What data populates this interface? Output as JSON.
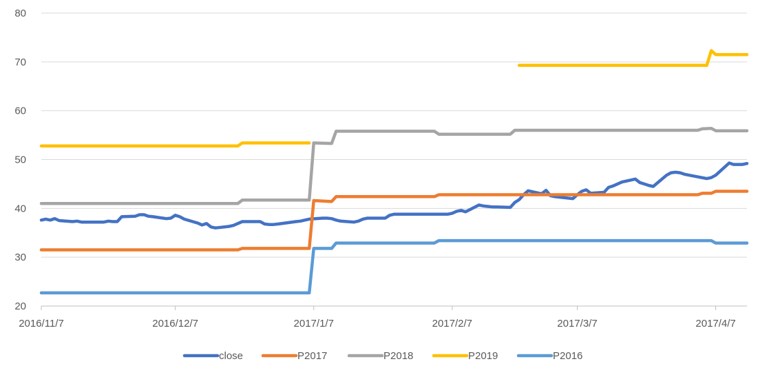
{
  "chart_data": {
    "type": "line",
    "x_ticks": [
      "2016/11/7",
      "2016/12/7",
      "2017/1/7",
      "2017/2/7",
      "2017/3/7",
      "2017/4/7"
    ],
    "x_range": [
      "2016/11/7",
      "2017/4/14"
    ],
    "ylim": [
      20,
      80
    ],
    "y_ticks": [
      "20",
      "30",
      "40",
      "50",
      "60",
      "70",
      "80"
    ],
    "grid": "horizontal",
    "legend_position": "bottom",
    "series": [
      {
        "name": "close",
        "color": "#4472C4",
        "points": [
          [
            "2016/11/7",
            37.6
          ],
          [
            "2016/11/8",
            37.8
          ],
          [
            "2016/11/9",
            37.6
          ],
          [
            "2016/11/10",
            37.9
          ],
          [
            "2016/11/11",
            37.5
          ],
          [
            "2016/11/14",
            37.3
          ],
          [
            "2016/11/15",
            37.4
          ],
          [
            "2016/11/16",
            37.2
          ],
          [
            "2016/11/17",
            37.2
          ],
          [
            "2016/11/18",
            37.2
          ],
          [
            "2016/11/21",
            37.2
          ],
          [
            "2016/11/22",
            37.4
          ],
          [
            "2016/11/23",
            37.3
          ],
          [
            "2016/11/24",
            37.3
          ],
          [
            "2016/11/25",
            38.3
          ],
          [
            "2016/11/28",
            38.4
          ],
          [
            "2016/11/29",
            38.7
          ],
          [
            "2016/11/30",
            38.7
          ],
          [
            "2016/12/1",
            38.4
          ],
          [
            "2016/12/2",
            38.3
          ],
          [
            "2016/12/5",
            37.9
          ],
          [
            "2016/12/6",
            38.0
          ],
          [
            "2016/12/7",
            38.6
          ],
          [
            "2016/12/8",
            38.3
          ],
          [
            "2016/12/9",
            37.8
          ],
          [
            "2016/12/12",
            37.0
          ],
          [
            "2016/12/13",
            36.6
          ],
          [
            "2016/12/14",
            36.9
          ],
          [
            "2016/12/15",
            36.2
          ],
          [
            "2016/12/16",
            36.0
          ],
          [
            "2016/12/19",
            36.3
          ],
          [
            "2016/12/20",
            36.5
          ],
          [
            "2016/12/21",
            36.9
          ],
          [
            "2016/12/22",
            37.3
          ],
          [
            "2016/12/23",
            37.3
          ],
          [
            "2016/12/26",
            37.3
          ],
          [
            "2016/12/27",
            36.8
          ],
          [
            "2016/12/28",
            36.7
          ],
          [
            "2016/12/29",
            36.7
          ],
          [
            "2016/12/30",
            36.8
          ],
          [
            "2017/1/3",
            37.3
          ],
          [
            "2017/1/4",
            37.4
          ],
          [
            "2017/1/5",
            37.6
          ],
          [
            "2017/1/6",
            37.8
          ],
          [
            "2017/1/9",
            38.0
          ],
          [
            "2017/1/10",
            38.0
          ],
          [
            "2017/1/11",
            37.9
          ],
          [
            "2017/1/12",
            37.6
          ],
          [
            "2017/1/13",
            37.4
          ],
          [
            "2017/1/16",
            37.2
          ],
          [
            "2017/1/17",
            37.4
          ],
          [
            "2017/1/18",
            37.8
          ],
          [
            "2017/1/19",
            38.0
          ],
          [
            "2017/1/20",
            38.0
          ],
          [
            "2017/1/23",
            38.0
          ],
          [
            "2017/1/24",
            38.6
          ],
          [
            "2017/1/25",
            38.8
          ],
          [
            "2017/1/26",
            38.8
          ],
          [
            "2017/2/3",
            38.8
          ],
          [
            "2017/2/6",
            38.8
          ],
          [
            "2017/2/7",
            39.0
          ],
          [
            "2017/2/8",
            39.4
          ],
          [
            "2017/2/9",
            39.6
          ],
          [
            "2017/2/10",
            39.3
          ],
          [
            "2017/2/13",
            40.7
          ],
          [
            "2017/2/14",
            40.5
          ],
          [
            "2017/2/15",
            40.4
          ],
          [
            "2017/2/16",
            40.3
          ],
          [
            "2017/2/17",
            40.3
          ],
          [
            "2017/2/20",
            40.2
          ],
          [
            "2017/2/21",
            41.2
          ],
          [
            "2017/2/22",
            41.8
          ],
          [
            "2017/2/23",
            42.8
          ],
          [
            "2017/2/24",
            43.6
          ],
          [
            "2017/2/27",
            43.0
          ],
          [
            "2017/2/28",
            43.7
          ],
          [
            "2017/3/1",
            42.6
          ],
          [
            "2017/3/2",
            42.4
          ],
          [
            "2017/3/3",
            42.3
          ],
          [
            "2017/3/6",
            42.0
          ],
          [
            "2017/3/7",
            42.8
          ],
          [
            "2017/3/8",
            43.5
          ],
          [
            "2017/3/9",
            43.8
          ],
          [
            "2017/3/10",
            43.1
          ],
          [
            "2017/3/13",
            43.3
          ],
          [
            "2017/3/14",
            44.3
          ],
          [
            "2017/3/15",
            44.6
          ],
          [
            "2017/3/16",
            45.0
          ],
          [
            "2017/3/17",
            45.4
          ],
          [
            "2017/3/20",
            46.0
          ],
          [
            "2017/3/21",
            45.3
          ],
          [
            "2017/3/22",
            45.0
          ],
          [
            "2017/3/23",
            44.7
          ],
          [
            "2017/3/24",
            44.5
          ],
          [
            "2017/3/27",
            46.8
          ],
          [
            "2017/3/28",
            47.3
          ],
          [
            "2017/3/29",
            47.4
          ],
          [
            "2017/3/30",
            47.3
          ],
          [
            "2017/3/31",
            47.0
          ],
          [
            "2017/4/5",
            46.1
          ],
          [
            "2017/4/6",
            46.3
          ],
          [
            "2017/4/7",
            46.8
          ],
          [
            "2017/4/10",
            49.3
          ],
          [
            "2017/4/11",
            49.0
          ],
          [
            "2017/4/12",
            49.0
          ],
          [
            "2017/4/13",
            49.0
          ],
          [
            "2017/4/14",
            49.2
          ]
        ]
      },
      {
        "name": "P2017",
        "color": "#ED7D31",
        "points": [
          [
            "2016/11/7",
            31.5
          ],
          [
            "2016/12/21",
            31.5
          ],
          [
            "2016/12/22",
            31.8
          ],
          [
            "2017/1/6",
            31.8
          ],
          [
            "2017/1/7",
            41.6
          ],
          [
            "2017/1/11",
            41.4
          ],
          [
            "2017/1/12",
            42.4
          ],
          [
            "2017/2/3",
            42.4
          ],
          [
            "2017/2/4",
            42.8
          ],
          [
            "2017/4/3",
            42.8
          ],
          [
            "2017/4/4",
            43.1
          ],
          [
            "2017/4/6",
            43.1
          ],
          [
            "2017/4/7",
            43.5
          ],
          [
            "2017/4/14",
            43.5
          ]
        ]
      },
      {
        "name": "P2018",
        "color": "#A5A5A5",
        "points": [
          [
            "2016/11/7",
            41.0
          ],
          [
            "2016/12/21",
            41.0
          ],
          [
            "2016/12/22",
            41.7
          ],
          [
            "2017/1/6",
            41.7
          ],
          [
            "2017/1/7",
            53.4
          ],
          [
            "2017/1/11",
            53.3
          ],
          [
            "2017/1/12",
            55.8
          ],
          [
            "2017/2/3",
            55.8
          ],
          [
            "2017/2/4",
            55.2
          ],
          [
            "2017/2/20",
            55.2
          ],
          [
            "2017/2/21",
            56.0
          ],
          [
            "2017/4/3",
            56.0
          ],
          [
            "2017/4/4",
            56.3
          ],
          [
            "2017/4/6",
            56.4
          ],
          [
            "2017/4/7",
            55.9
          ],
          [
            "2017/4/14",
            55.9
          ]
        ]
      },
      {
        "name": "P2019",
        "color": "#FFC000",
        "points": [
          [
            "2016/11/7",
            52.8
          ],
          [
            "2016/12/21",
            52.8
          ],
          [
            "2016/12/22",
            53.4
          ],
          [
            "2017/1/6",
            53.4
          ],
          null,
          [
            "2017/2/22",
            69.3
          ],
          [
            "2017/4/5",
            69.3
          ],
          [
            "2017/4/6",
            72.3
          ],
          [
            "2017/4/7",
            71.5
          ],
          [
            "2017/4/14",
            71.5
          ]
        ]
      },
      {
        "name": "P2016",
        "color": "#5B9BD5",
        "points": [
          [
            "2016/11/7",
            22.7
          ],
          [
            "2017/1/6",
            22.7
          ],
          [
            "2017/1/7",
            31.8
          ],
          [
            "2017/1/11",
            31.8
          ],
          [
            "2017/1/12",
            32.9
          ],
          [
            "2017/2/3",
            32.9
          ],
          [
            "2017/2/4",
            33.4
          ],
          [
            "2017/4/6",
            33.4
          ],
          [
            "2017/4/7",
            32.9
          ],
          [
            "2017/4/14",
            32.9
          ]
        ]
      }
    ]
  }
}
